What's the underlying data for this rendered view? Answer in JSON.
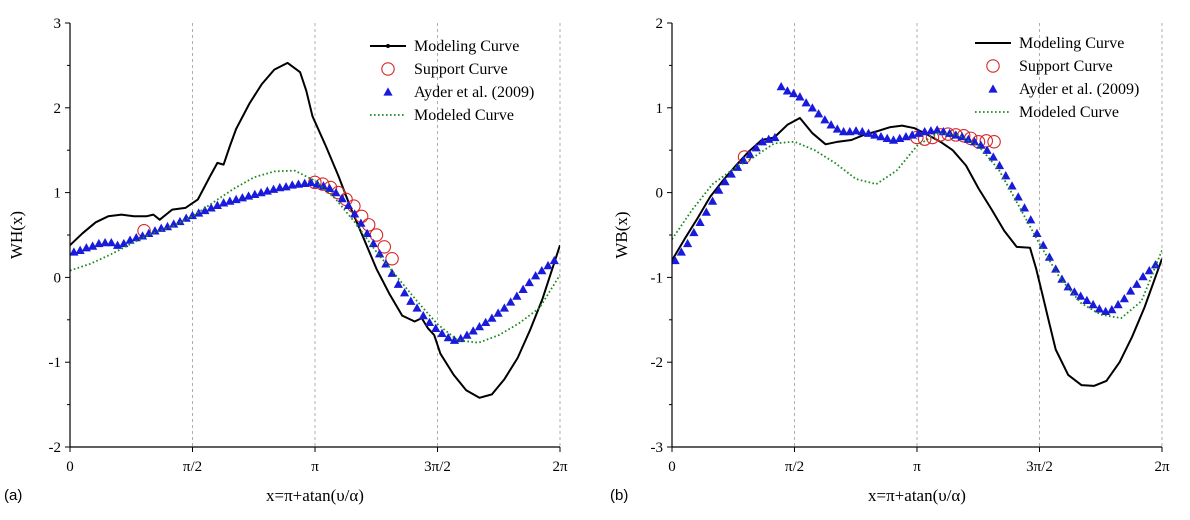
{
  "chart_data": [
    {
      "panel_tag": "(a)",
      "type": "line",
      "xlabel": "x=π+atan(υ/α)",
      "ylabel": "WH(x)",
      "xlim": [
        0,
        6.2832
      ],
      "ylim": [
        -2,
        3
      ],
      "x_ticks": [
        {
          "value": 0,
          "label": "0"
        },
        {
          "value": 1.5708,
          "label": "π/2"
        },
        {
          "value": 3.1416,
          "label": "π"
        },
        {
          "value": 4.7124,
          "label": "3π/2"
        },
        {
          "value": 6.2832,
          "label": "2π"
        }
      ],
      "y_ticks": [
        {
          "value": -2,
          "label": "-2"
        },
        {
          "value": -1,
          "label": "-1"
        },
        {
          "value": 0,
          "label": "0"
        },
        {
          "value": 1,
          "label": "1"
        },
        {
          "value": 2,
          "label": "2"
        },
        {
          "value": 3,
          "label": "3"
        }
      ],
      "vertical_gridlines": true,
      "legend_position": "top-right",
      "series": [
        {
          "name": "Modeling Curve",
          "style": "solid-line",
          "color": "#000000",
          "x": [
            0,
            0.16,
            0.33,
            0.49,
            0.66,
            0.82,
            0.98,
            1.07,
            1.15,
            1.31,
            1.48,
            1.64,
            1.8,
            1.89,
            1.97,
            2.05,
            2.13,
            2.3,
            2.46,
            2.62,
            2.79,
            2.95,
            3.03,
            3.11,
            3.28,
            3.44,
            3.6,
            3.77,
            3.93,
            4.1,
            4.26,
            4.42,
            4.51,
            4.59,
            4.67,
            4.75,
            4.92,
            5.08,
            5.25,
            5.41,
            5.57,
            5.74,
            5.9,
            6.06,
            6.2832
          ],
          "y": [
            0.38,
            0.52,
            0.65,
            0.72,
            0.74,
            0.72,
            0.72,
            0.74,
            0.68,
            0.8,
            0.82,
            0.92,
            1.2,
            1.35,
            1.33,
            1.55,
            1.75,
            2.05,
            2.28,
            2.45,
            2.53,
            2.42,
            2.2,
            1.9,
            1.55,
            1.2,
            0.82,
            0.45,
            0.1,
            -0.2,
            -0.45,
            -0.52,
            -0.48,
            -0.6,
            -0.68,
            -0.9,
            -1.15,
            -1.33,
            -1.42,
            -1.38,
            -1.2,
            -0.95,
            -0.62,
            -0.25,
            0.38
          ]
        },
        {
          "name": "Support Curve",
          "style": "open-circle",
          "color": "#d62728",
          "x": [
            0.95,
            3.14,
            3.24,
            3.34,
            3.44,
            3.54,
            3.64,
            3.74,
            3.83,
            3.93,
            4.03,
            4.13
          ],
          "y": [
            0.55,
            1.12,
            1.1,
            1.06,
            1.0,
            0.92,
            0.84,
            0.72,
            0.62,
            0.5,
            0.36,
            0.22
          ]
        },
        {
          "name": "Ayder et al. (2009)",
          "style": "filled-triangle",
          "color": "#1a1adc",
          "x": [
            0.05,
            0.13,
            0.21,
            0.29,
            0.37,
            0.45,
            0.53,
            0.61,
            0.69,
            0.77,
            0.85,
            0.93,
            1.01,
            1.09,
            1.17,
            1.25,
            1.33,
            1.41,
            1.49,
            1.57,
            1.65,
            1.73,
            1.81,
            1.89,
            1.97,
            2.05,
            2.13,
            2.21,
            2.29,
            2.37,
            2.45,
            2.53,
            2.61,
            2.69,
            2.77,
            2.85,
            2.93,
            3.01,
            3.09,
            3.17,
            3.25,
            3.33,
            3.41,
            3.49,
            3.57,
            3.65,
            3.73,
            3.81,
            3.89,
            3.97,
            4.05,
            4.13,
            4.21,
            4.29,
            4.37,
            4.45,
            4.53,
            4.61,
            4.69,
            4.77,
            4.85,
            4.93,
            5.01,
            5.09,
            5.17,
            5.25,
            5.33,
            5.41,
            5.49,
            5.57,
            5.65,
            5.73,
            5.81,
            5.89,
            5.97,
            6.05,
            6.13,
            6.21
          ],
          "y": [
            0.3,
            0.32,
            0.35,
            0.37,
            0.4,
            0.41,
            0.41,
            0.38,
            0.4,
            0.44,
            0.47,
            0.49,
            0.52,
            0.55,
            0.58,
            0.6,
            0.63,
            0.66,
            0.7,
            0.73,
            0.76,
            0.79,
            0.82,
            0.85,
            0.88,
            0.9,
            0.92,
            0.94,
            0.96,
            0.98,
            1.0,
            1.02,
            1.04,
            1.06,
            1.07,
            1.09,
            1.1,
            1.11,
            1.12,
            1.1,
            1.08,
            1.05,
            1.0,
            0.93,
            0.85,
            0.75,
            0.64,
            0.52,
            0.4,
            0.28,
            0.16,
            0.05,
            -0.08,
            -0.18,
            -0.28,
            -0.36,
            -0.45,
            -0.53,
            -0.6,
            -0.66,
            -0.71,
            -0.74,
            -0.72,
            -0.68,
            -0.63,
            -0.58,
            -0.53,
            -0.48,
            -0.42,
            -0.36,
            -0.29,
            -0.22,
            -0.14,
            -0.06,
            0.02,
            0.08,
            0.14,
            0.2
          ]
        },
        {
          "name": "Modeled Curve",
          "style": "dotted-line",
          "color": "#1a8a1a",
          "x": [
            0,
            0.26,
            0.52,
            0.79,
            1.05,
            1.31,
            1.57,
            1.83,
            2.09,
            2.36,
            2.62,
            2.88,
            3.14,
            3.4,
            3.67,
            3.93,
            4.19,
            4.45,
            4.71,
            4.97,
            5.24,
            5.5,
            5.76,
            6.02,
            6.2832
          ],
          "y": [
            0.08,
            0.16,
            0.27,
            0.4,
            0.52,
            0.6,
            0.72,
            0.88,
            1.04,
            1.18,
            1.25,
            1.26,
            1.14,
            0.93,
            0.63,
            0.3,
            0.01,
            -0.28,
            -0.55,
            -0.74,
            -0.77,
            -0.68,
            -0.54,
            -0.36,
            0.03
          ]
        }
      ]
    },
    {
      "panel_tag": "(b)",
      "type": "line",
      "xlabel": "x=π+atan(υ/α)",
      "ylabel": "WB(x)",
      "xlim": [
        0,
        6.2832
      ],
      "ylim": [
        -3,
        2
      ],
      "x_ticks": [
        {
          "value": 0,
          "label": "0"
        },
        {
          "value": 1.5708,
          "label": "π/2"
        },
        {
          "value": 3.1416,
          "label": "π"
        },
        {
          "value": 4.7124,
          "label": "3π/2"
        },
        {
          "value": 6.2832,
          "label": "2π"
        }
      ],
      "y_ticks": [
        {
          "value": -3,
          "label": "-3"
        },
        {
          "value": -2,
          "label": "-2"
        },
        {
          "value": -1,
          "label": "-1"
        },
        {
          "value": 0,
          "label": "0"
        },
        {
          "value": 1,
          "label": "1"
        },
        {
          "value": 2,
          "label": "2"
        }
      ],
      "vertical_gridlines": true,
      "legend_position": "top-right",
      "series": [
        {
          "name": "Modeling Curve",
          "style": "solid-line",
          "color": "#000000",
          "x": [
            0,
            0.16,
            0.33,
            0.49,
            0.66,
            0.82,
            0.98,
            1.15,
            1.31,
            1.48,
            1.64,
            1.8,
            1.97,
            2.13,
            2.3,
            2.46,
            2.62,
            2.79,
            2.95,
            3.11,
            3.28,
            3.44,
            3.6,
            3.77,
            3.93,
            4.1,
            4.26,
            4.42,
            4.59,
            4.67,
            4.75,
            4.84,
            4.92,
            5.08,
            5.25,
            5.41,
            5.57,
            5.74,
            5.9,
            6.06,
            6.2832
          ],
          "y": [
            -0.8,
            -0.55,
            -0.3,
            -0.05,
            0.15,
            0.32,
            0.48,
            0.62,
            0.65,
            0.8,
            0.88,
            0.7,
            0.57,
            0.6,
            0.62,
            0.68,
            0.72,
            0.77,
            0.79,
            0.76,
            0.68,
            0.6,
            0.5,
            0.32,
            0.05,
            -0.2,
            -0.45,
            -0.64,
            -0.65,
            -0.9,
            -1.2,
            -1.55,
            -1.85,
            -2.15,
            -2.27,
            -2.28,
            -2.22,
            -2.0,
            -1.7,
            -1.35,
            -0.78
          ]
        },
        {
          "name": "Support Curve",
          "style": "open-circle",
          "color": "#d62728",
          "x": [
            0.93,
            3.14,
            3.24,
            3.34,
            3.44,
            3.54,
            3.64,
            3.74,
            3.83,
            3.93,
            4.03,
            4.13
          ],
          "y": [
            0.42,
            0.65,
            0.63,
            0.65,
            0.68,
            0.69,
            0.68,
            0.67,
            0.64,
            0.6,
            0.61,
            0.6
          ]
        },
        {
          "name": "Ayder et al. (2009)",
          "style": "filled-triangle",
          "color": "#1a1adc",
          "x": [
            0.04,
            0.12,
            0.2,
            0.28,
            0.36,
            0.44,
            0.52,
            0.6,
            0.68,
            0.76,
            0.84,
            0.92,
            1.0,
            1.08,
            1.16,
            1.24,
            1.32,
            1.4,
            1.48,
            1.56,
            1.64,
            1.72,
            1.8,
            1.88,
            1.96,
            2.04,
            2.12,
            2.2,
            2.28,
            2.36,
            2.44,
            2.52,
            2.6,
            2.68,
            2.76,
            2.84,
            2.92,
            3.0,
            3.08,
            3.16,
            3.24,
            3.32,
            3.4,
            3.48,
            3.56,
            3.64,
            3.72,
            3.8,
            3.88,
            3.96,
            4.04,
            4.12,
            4.2,
            4.28,
            4.36,
            4.44,
            4.52,
            4.6,
            4.68,
            4.76,
            4.84,
            4.92,
            5.0,
            5.08,
            5.16,
            5.24,
            5.32,
            5.4,
            5.48,
            5.56,
            5.64,
            5.72,
            5.8,
            5.88,
            5.96,
            6.04,
            6.12,
            6.2
          ],
          "y": [
            -0.8,
            -0.7,
            -0.6,
            -0.47,
            -0.35,
            -0.23,
            -0.1,
            0.03,
            0.13,
            0.22,
            0.3,
            0.38,
            0.45,
            0.53,
            0.6,
            0.63,
            0.65,
            1.25,
            1.2,
            1.17,
            1.13,
            1.06,
            1.0,
            0.93,
            0.86,
            0.8,
            0.75,
            0.72,
            0.72,
            0.73,
            0.72,
            0.7,
            0.68,
            0.66,
            0.64,
            0.62,
            0.64,
            0.66,
            0.68,
            0.7,
            0.72,
            0.73,
            0.74,
            0.72,
            0.7,
            0.68,
            0.66,
            0.63,
            0.6,
            0.56,
            0.5,
            0.42,
            0.32,
            0.2,
            0.08,
            -0.05,
            -0.18,
            -0.32,
            -0.48,
            -0.62,
            -0.76,
            -0.9,
            -1.02,
            -1.11,
            -1.17,
            -1.22,
            -1.27,
            -1.32,
            -1.37,
            -1.4,
            -1.38,
            -1.32,
            -1.25,
            -1.16,
            -1.08,
            -0.99,
            -0.92,
            -0.85
          ]
        },
        {
          "name": "Modeled Curve",
          "style": "dotted-line",
          "color": "#1a8a1a",
          "x": [
            0,
            0.26,
            0.52,
            0.79,
            1.05,
            1.31,
            1.57,
            1.83,
            2.09,
            2.36,
            2.62,
            2.88,
            3.14,
            3.4,
            3.67,
            3.93,
            4.19,
            4.45,
            4.71,
            4.97,
            5.24,
            5.5,
            5.76,
            6.02,
            6.2832
          ],
          "y": [
            -0.55,
            -0.2,
            0.1,
            0.28,
            0.42,
            0.58,
            0.6,
            0.5,
            0.35,
            0.16,
            0.1,
            0.26,
            0.55,
            0.7,
            0.68,
            0.55,
            0.27,
            -0.16,
            -0.6,
            -1.0,
            -1.3,
            -1.44,
            -1.48,
            -1.28,
            -0.68
          ]
        }
      ]
    }
  ]
}
